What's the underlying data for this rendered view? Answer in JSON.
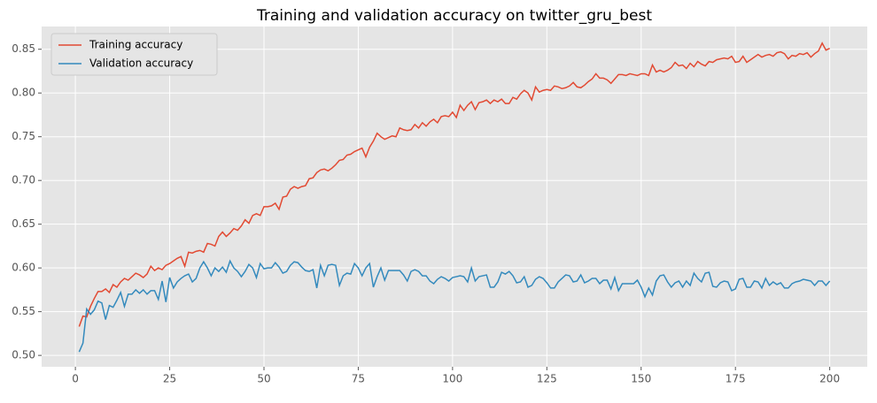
{
  "chart_data": {
    "type": "line",
    "title": "Training and validation accuracy on twitter_gru_best",
    "x": [
      1,
      2,
      3,
      4,
      5,
      6,
      7,
      8,
      9,
      10,
      11,
      12,
      13,
      14,
      15,
      16,
      17,
      18,
      19,
      20,
      21,
      22,
      23,
      24,
      25,
      26,
      27,
      28,
      29,
      30,
      31,
      32,
      33,
      34,
      35,
      36,
      37,
      38,
      39,
      40,
      41,
      42,
      43,
      44,
      45,
      46,
      47,
      48,
      49,
      50,
      51,
      52,
      53,
      54,
      55,
      56,
      57,
      58,
      59,
      60,
      61,
      62,
      63,
      64,
      65,
      66,
      67,
      68,
      69,
      70,
      71,
      72,
      73,
      74,
      75,
      76,
      77,
      78,
      79,
      80,
      81,
      82,
      83,
      84,
      85,
      86,
      87,
      88,
      89,
      90,
      91,
      92,
      93,
      94,
      95,
      96,
      97,
      98,
      99,
      100,
      101,
      102,
      103,
      104,
      105,
      106,
      107,
      108,
      109,
      110,
      111,
      112,
      113,
      114,
      115,
      116,
      117,
      118,
      119,
      120,
      121,
      122,
      123,
      124,
      125,
      126,
      127,
      128,
      129,
      130,
      131,
      132,
      133,
      134,
      135,
      136,
      137,
      138,
      139,
      140,
      141,
      142,
      143,
      144,
      145,
      146,
      147,
      148,
      149,
      150,
      151,
      152,
      153,
      154,
      155,
      156,
      157,
      158,
      159,
      160,
      161,
      162,
      163,
      164,
      165,
      166,
      167,
      168,
      169,
      170,
      171,
      172,
      173,
      174,
      175,
      176,
      177,
      178,
      179,
      180,
      181,
      182,
      183,
      184,
      185,
      186,
      187,
      188,
      189,
      190,
      191,
      192,
      193,
      194,
      195,
      196,
      197,
      198,
      199,
      200
    ],
    "series": [
      {
        "name": "Training accuracy",
        "color": "#e24a33",
        "values": [
          0.533,
          0.545,
          0.544,
          0.556,
          0.565,
          0.573,
          0.573,
          0.576,
          0.572,
          0.581,
          0.578,
          0.584,
          0.588,
          0.586,
          0.59,
          0.594,
          0.592,
          0.589,
          0.593,
          0.602,
          0.597,
          0.6,
          0.598,
          0.603,
          0.605,
          0.608,
          0.611,
          0.613,
          0.602,
          0.618,
          0.617,
          0.619,
          0.62,
          0.618,
          0.628,
          0.627,
          0.625,
          0.636,
          0.641,
          0.636,
          0.64,
          0.645,
          0.643,
          0.648,
          0.655,
          0.651,
          0.66,
          0.662,
          0.66,
          0.67,
          0.67,
          0.671,
          0.674,
          0.667,
          0.681,
          0.682,
          0.69,
          0.693,
          0.691,
          0.693,
          0.694,
          0.702,
          0.703,
          0.709,
          0.712,
          0.713,
          0.711,
          0.714,
          0.718,
          0.723,
          0.724,
          0.729,
          0.73,
          0.733,
          0.735,
          0.737,
          0.727,
          0.738,
          0.745,
          0.754,
          0.75,
          0.747,
          0.749,
          0.751,
          0.75,
          0.76,
          0.758,
          0.757,
          0.758,
          0.764,
          0.76,
          0.766,
          0.762,
          0.767,
          0.77,
          0.766,
          0.773,
          0.774,
          0.773,
          0.778,
          0.772,
          0.786,
          0.78,
          0.786,
          0.79,
          0.781,
          0.789,
          0.79,
          0.792,
          0.788,
          0.792,
          0.79,
          0.793,
          0.788,
          0.788,
          0.795,
          0.793,
          0.799,
          0.803,
          0.8,
          0.792,
          0.807,
          0.801,
          0.803,
          0.804,
          0.803,
          0.808,
          0.807,
          0.805,
          0.806,
          0.808,
          0.812,
          0.807,
          0.806,
          0.809,
          0.813,
          0.816,
          0.822,
          0.817,
          0.817,
          0.815,
          0.811,
          0.816,
          0.821,
          0.821,
          0.82,
          0.822,
          0.821,
          0.82,
          0.822,
          0.822,
          0.82,
          0.832,
          0.824,
          0.826,
          0.824,
          0.826,
          0.829,
          0.835,
          0.831,
          0.832,
          0.828,
          0.834,
          0.83,
          0.836,
          0.833,
          0.831,
          0.836,
          0.835,
          0.838,
          0.839,
          0.84,
          0.839,
          0.842,
          0.835,
          0.836,
          0.842,
          0.835,
          0.838,
          0.841,
          0.844,
          0.841,
          0.843,
          0.844,
          0.842,
          0.846,
          0.847,
          0.845,
          0.839,
          0.843,
          0.842,
          0.845,
          0.844,
          0.846,
          0.841,
          0.845,
          0.848,
          0.857,
          0.849,
          0.851
        ]
      },
      {
        "name": "Validation accuracy",
        "color": "#348abd",
        "values": [
          0.504,
          0.514,
          0.553,
          0.547,
          0.552,
          0.562,
          0.56,
          0.541,
          0.557,
          0.555,
          0.563,
          0.572,
          0.556,
          0.57,
          0.57,
          0.575,
          0.571,
          0.575,
          0.57,
          0.574,
          0.574,
          0.564,
          0.585,
          0.561,
          0.589,
          0.577,
          0.584,
          0.588,
          0.591,
          0.593,
          0.584,
          0.588,
          0.6,
          0.607,
          0.6,
          0.591,
          0.6,
          0.596,
          0.601,
          0.595,
          0.608,
          0.6,
          0.596,
          0.59,
          0.596,
          0.604,
          0.6,
          0.589,
          0.605,
          0.599,
          0.6,
          0.6,
          0.606,
          0.601,
          0.594,
          0.596,
          0.603,
          0.607,
          0.606,
          0.601,
          0.597,
          0.596,
          0.598,
          0.577,
          0.603,
          0.591,
          0.603,
          0.604,
          0.603,
          0.58,
          0.591,
          0.594,
          0.593,
          0.605,
          0.6,
          0.591,
          0.6,
          0.605,
          0.578,
          0.59,
          0.6,
          0.586,
          0.597,
          0.597,
          0.597,
          0.597,
          0.592,
          0.585,
          0.596,
          0.598,
          0.596,
          0.591,
          0.591,
          0.585,
          0.582,
          0.587,
          0.59,
          0.588,
          0.585,
          0.589,
          0.59,
          0.591,
          0.59,
          0.584,
          0.6,
          0.585,
          0.59,
          0.591,
          0.592,
          0.578,
          0.578,
          0.584,
          0.595,
          0.593,
          0.596,
          0.591,
          0.583,
          0.584,
          0.59,
          0.578,
          0.58,
          0.587,
          0.59,
          0.588,
          0.583,
          0.577,
          0.577,
          0.584,
          0.588,
          0.592,
          0.591,
          0.584,
          0.585,
          0.592,
          0.583,
          0.585,
          0.588,
          0.588,
          0.582,
          0.586,
          0.586,
          0.576,
          0.589,
          0.574,
          0.582,
          0.582,
          0.582,
          0.582,
          0.586,
          0.578,
          0.567,
          0.577,
          0.569,
          0.585,
          0.591,
          0.592,
          0.584,
          0.578,
          0.583,
          0.585,
          0.578,
          0.585,
          0.58,
          0.594,
          0.588,
          0.584,
          0.594,
          0.595,
          0.579,
          0.578,
          0.583,
          0.585,
          0.584,
          0.574,
          0.576,
          0.587,
          0.588,
          0.578,
          0.578,
          0.585,
          0.584,
          0.577,
          0.588,
          0.58,
          0.584,
          0.581,
          0.583,
          0.577,
          0.577,
          0.582,
          0.584,
          0.585,
          0.587,
          0.586,
          0.585,
          0.58,
          0.585,
          0.585,
          0.58,
          0.585
        ]
      }
    ],
    "xlim": [
      -8.95,
      209.95
    ],
    "ylim": [
      0.487,
      0.876
    ],
    "xticks": [
      0,
      25,
      50,
      75,
      100,
      125,
      150,
      175,
      200
    ],
    "yticks": [
      {
        "value": 0.5,
        "label": "0.50"
      },
      0.55,
      {
        "value": 0.6,
        "label": "0.60"
      },
      0.65,
      {
        "value": 0.7,
        "label": "0.70"
      },
      0.75,
      {
        "value": 0.8,
        "label": "0.80"
      },
      0.85
    ],
    "grid": true,
    "legend": "upper-left"
  }
}
